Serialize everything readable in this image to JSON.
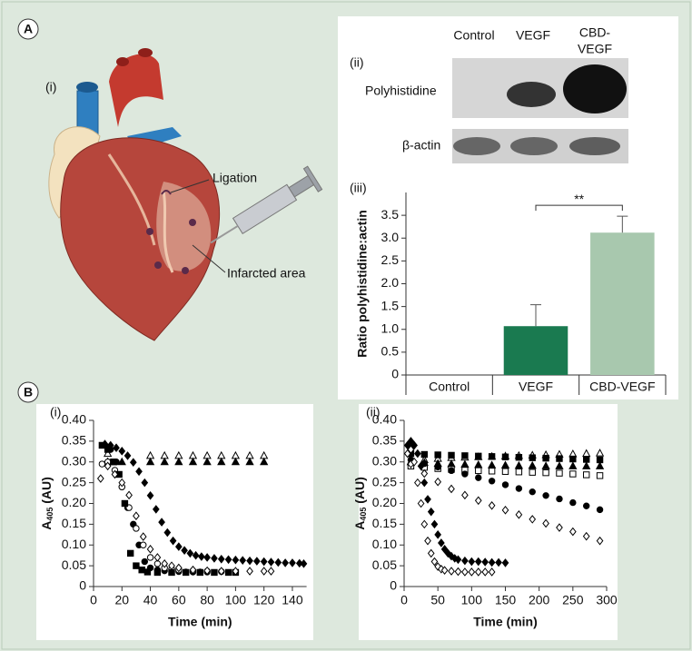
{
  "figure": {
    "panel_a": "A",
    "panel_b": "B",
    "heart": {
      "label": "(i)",
      "ligation": "Ligation",
      "infarct": "Infarcted area"
    },
    "blot": {
      "label": "(ii)",
      "columns": [
        "Control",
        "VEGF",
        [
          "CBD-",
          "VEGF"
        ]
      ],
      "rows": [
        "Polyhistidine",
        "β-actin"
      ]
    }
  },
  "chart_data": [
    {
      "type": "bar",
      "panel_label": "(iii)",
      "ylabel": "Ratio polyhistidine:actin",
      "categories": [
        "Control",
        "VEGF",
        "CBD-VEGF"
      ],
      "values": [
        0,
        1.07,
        3.12
      ],
      "errors": [
        null,
        0.47,
        0.36
      ],
      "colors": [
        "#1a7a50",
        "#1a7a50",
        "#a8c8ae"
      ],
      "ylim": [
        0,
        4.0
      ],
      "yticks": [
        0,
        0.5,
        {
          "value": 1,
          "label": "1.0"
        },
        1.5,
        {
          "value": 2,
          "label": "2.0"
        },
        2.5,
        {
          "value": 3,
          "label": "3.0"
        },
        3.5
      ],
      "significance": {
        "label": "**",
        "between": [
          "VEGF",
          "CBD-VEGF"
        ]
      }
    },
    {
      "type": "scatter",
      "panel_label": "(i)",
      "xlabel": "Time (min)",
      "ylabel": [
        "A",
        "405",
        " (AU)"
      ],
      "xlim": [
        0,
        150
      ],
      "xticks": [
        0,
        20,
        40,
        60,
        80,
        100,
        120,
        140
      ],
      "ylim": [
        0,
        0.4
      ],
      "yticks": [
        0,
        0.05,
        {
          "value": 0.1,
          "label": "0.10"
        },
        0.15,
        {
          "value": 0.2,
          "label": "0.20"
        },
        0.25,
        {
          "value": 0.3,
          "label": "0.30"
        },
        0.35,
        {
          "value": 0.4,
          "label": "0.40"
        }
      ],
      "series": [
        {
          "marker": "triangle-open",
          "color": "#000",
          "x": [
            10,
            40,
            50,
            60,
            70,
            80,
            90,
            100,
            110,
            120
          ],
          "values": [
            0.32,
            0.315,
            0.315,
            0.315,
            0.315,
            0.315,
            0.315,
            0.315,
            0.315,
            0.315
          ]
        },
        {
          "marker": "triangle",
          "color": "#000",
          "x": [
            10,
            20,
            40,
            50,
            60,
            70,
            80,
            90,
            100,
            110,
            120
          ],
          "values": [
            0.3,
            0.3,
            0.3,
            0.3,
            0.3,
            0.3,
            0.3,
            0.3,
            0.3,
            0.3,
            0.3
          ]
        },
        {
          "marker": "diamond",
          "color": "#000",
          "x": [
            8,
            12,
            16,
            20,
            24,
            28,
            32,
            36,
            40,
            44,
            48,
            52,
            56,
            60,
            64,
            68,
            72,
            76,
            80,
            85,
            90,
            95,
            100,
            105,
            110,
            115,
            120,
            125,
            130,
            135,
            140,
            145,
            148
          ],
          "values": [
            0.343,
            0.34,
            0.334,
            0.326,
            0.315,
            0.299,
            0.277,
            0.25,
            0.219,
            0.186,
            0.155,
            0.13,
            0.11,
            0.096,
            0.087,
            0.08,
            0.075,
            0.072,
            0.07,
            0.068,
            0.066,
            0.065,
            0.064,
            0.063,
            0.062,
            0.061,
            0.06,
            0.059,
            0.058,
            0.057,
            0.057,
            0.056,
            0.055
          ]
        },
        {
          "marker": "circle",
          "color": "#000",
          "x": [
            8,
            12,
            16,
            20,
            24,
            28,
            32,
            36,
            40,
            45,
            50,
            55,
            60,
            65,
            70,
            75,
            80
          ],
          "values": [
            0.34,
            0.33,
            0.3,
            0.24,
            0.19,
            0.15,
            0.1,
            0.06,
            0.045,
            0.04,
            0.038,
            0.037,
            0.036,
            0.035,
            0.035,
            0.035,
            0.035
          ]
        },
        {
          "marker": "circle-open",
          "color": "#000",
          "x": [
            6,
            10,
            15,
            20,
            25,
            30,
            35,
            40,
            45,
            50,
            55,
            60,
            70,
            80,
            90,
            100
          ],
          "values": [
            0.295,
            0.3,
            0.28,
            0.24,
            0.19,
            0.14,
            0.1,
            0.07,
            0.055,
            0.045,
            0.042,
            0.04,
            0.038,
            0.037,
            0.036,
            0.035
          ]
        },
        {
          "marker": "square",
          "color": "#000",
          "x": [
            6,
            10,
            14,
            18,
            22,
            26,
            30,
            34,
            38,
            45,
            55,
            65,
            75,
            85,
            95,
            100
          ],
          "values": [
            0.34,
            0.33,
            0.3,
            0.27,
            0.2,
            0.08,
            0.05,
            0.04,
            0.035,
            0.034,
            0.034,
            0.034,
            0.034,
            0.034,
            0.034,
            0.034
          ]
        },
        {
          "marker": "diamond-open",
          "color": "#000",
          "x": [
            5,
            10,
            15,
            20,
            25,
            30,
            35,
            40,
            45,
            50,
            55,
            60,
            70,
            80,
            90,
            100,
            110,
            120,
            125
          ],
          "values": [
            0.26,
            0.29,
            0.27,
            0.25,
            0.22,
            0.17,
            0.12,
            0.09,
            0.07,
            0.055,
            0.05,
            0.045,
            0.04,
            0.038,
            0.037,
            0.037,
            0.037,
            0.037,
            0.037
          ]
        }
      ]
    },
    {
      "type": "scatter",
      "panel_label": "(ii)",
      "xlabel": "Time (min)",
      "ylabel": [
        "A",
        "405",
        " (AU)"
      ],
      "xlim": [
        0,
        300
      ],
      "xticks": [
        0,
        50,
        100,
        150,
        200,
        250,
        300
      ],
      "ylim": [
        0,
        0.4
      ],
      "yticks": [
        0,
        0.05,
        {
          "value": 0.1,
          "label": "0.10"
        },
        0.15,
        {
          "value": 0.2,
          "label": "0.20"
        },
        0.25,
        {
          "value": 0.3,
          "label": "0.30"
        },
        0.35,
        {
          "value": 0.4,
          "label": "0.40"
        }
      ],
      "series": [
        {
          "marker": "triangle-open",
          "color": "#000",
          "x": [
            10,
            30,
            50,
            70,
            90,
            110,
            130,
            150,
            170,
            190,
            210,
            230,
            250,
            270,
            290
          ],
          "values": [
            0.3,
            0.305,
            0.308,
            0.31,
            0.311,
            0.312,
            0.313,
            0.314,
            0.315,
            0.316,
            0.317,
            0.318,
            0.319,
            0.32,
            0.321
          ]
        },
        {
          "marker": "square",
          "color": "#000",
          "x": [
            10,
            30,
            50,
            70,
            90,
            110,
            130,
            150,
            170,
            190,
            210,
            230,
            250,
            270,
            290
          ],
          "values": [
            0.32,
            0.318,
            0.317,
            0.316,
            0.315,
            0.314,
            0.313,
            0.312,
            0.311,
            0.31,
            0.309,
            0.308,
            0.307,
            0.306,
            0.305
          ]
        },
        {
          "marker": "triangle",
          "color": "#000",
          "x": [
            10,
            30,
            50,
            70,
            90,
            110,
            130,
            150,
            170,
            190,
            210,
            230,
            250,
            270,
            290
          ],
          "values": [
            0.3,
            0.298,
            0.296,
            0.295,
            0.294,
            0.293,
            0.292,
            0.292,
            0.291,
            0.291,
            0.29,
            0.29,
            0.29,
            0.29,
            0.29
          ]
        },
        {
          "marker": "square-open",
          "color": "#000",
          "x": [
            10,
            30,
            50,
            70,
            90,
            110,
            130,
            150,
            170,
            190,
            210,
            230,
            250,
            270,
            290
          ],
          "values": [
            0.29,
            0.287,
            0.284,
            0.282,
            0.28,
            0.279,
            0.278,
            0.277,
            0.276,
            0.275,
            0.274,
            0.273,
            0.271,
            0.269,
            0.267
          ]
        },
        {
          "marker": "circle",
          "color": "#000",
          "x": [
            10,
            30,
            50,
            70,
            90,
            110,
            130,
            150,
            170,
            190,
            210,
            230,
            250,
            270,
            290
          ],
          "values": [
            0.305,
            0.296,
            0.288,
            0.279,
            0.271,
            0.262,
            0.254,
            0.245,
            0.236,
            0.228,
            0.219,
            0.211,
            0.202,
            0.194,
            0.185
          ]
        },
        {
          "marker": "diamond-open",
          "color": "#000",
          "x": [
            10,
            30,
            50,
            70,
            90,
            110,
            130,
            150,
            170,
            190,
            210,
            230,
            250,
            270,
            290
          ],
          "values": [
            0.295,
            0.272,
            0.252,
            0.235,
            0.22,
            0.207,
            0.195,
            0.184,
            0.173,
            0.162,
            0.152,
            0.142,
            0.132,
            0.121,
            0.11
          ]
        },
        {
          "marker": "diamond",
          "color": "#000",
          "x": [
            5,
            10,
            15,
            20,
            25,
            30,
            35,
            40,
            45,
            50,
            55,
            60,
            65,
            70,
            75,
            80,
            90,
            100,
            110,
            120,
            130,
            140,
            150
          ],
          "values": [
            0.34,
            0.35,
            0.34,
            0.32,
            0.29,
            0.25,
            0.21,
            0.18,
            0.15,
            0.125,
            0.105,
            0.09,
            0.08,
            0.073,
            0.068,
            0.065,
            0.062,
            0.06,
            0.06,
            0.059,
            0.058,
            0.058,
            0.057
          ]
        },
        {
          "marker": "diamond-open",
          "color": "#000",
          "x": [
            5,
            10,
            15,
            20,
            25,
            30,
            35,
            40,
            45,
            50,
            55,
            60,
            70,
            80,
            90,
            100,
            110,
            120,
            130
          ],
          "values": [
            0.32,
            0.33,
            0.3,
            0.25,
            0.2,
            0.15,
            0.11,
            0.08,
            0.06,
            0.048,
            0.042,
            0.039,
            0.037,
            0.036,
            0.035,
            0.035,
            0.035,
            0.035,
            0.035
          ]
        }
      ]
    }
  ]
}
